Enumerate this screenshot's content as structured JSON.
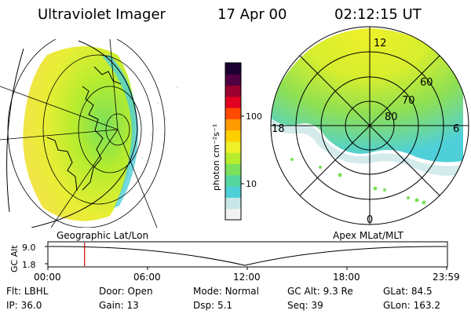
{
  "header": {
    "instrument": "Ultraviolet Imager",
    "date": "17 Apr 00",
    "time": "02:12:15 UT"
  },
  "colorbar": {
    "unit_label": "photon cm⁻²s⁻¹",
    "ticks": [
      "100",
      "10"
    ],
    "colors": [
      "#f2f2f2",
      "#c8e6e6",
      "#4fd0d8",
      "#55d6a0",
      "#7be05a",
      "#b6ec2e",
      "#eef02a",
      "#ffd000",
      "#ff9a00",
      "#ff4a00",
      "#e00020",
      "#9a0030",
      "#500040",
      "#1a0030"
    ]
  },
  "left_map": {
    "label": "Geographic Lat/Lon"
  },
  "right_map": {
    "label": "Apex MLat/MLT",
    "lat_labels": [
      "60",
      "70",
      "80"
    ],
    "mlt_labels": {
      "top": "12",
      "left": "18",
      "right": "6",
      "bottom": "0"
    }
  },
  "timeline": {
    "ylabel": "GC Alt",
    "y_ticks": [
      "9.0",
      "1.8"
    ],
    "x_ticks": [
      "00:00",
      "06:00",
      "12:00",
      "18:00",
      "23:59"
    ],
    "marker_time_fraction": 0.092,
    "marker_color": "#cc0000"
  },
  "status": {
    "row1": [
      {
        "key": "Flt:",
        "value": "LBHL"
      },
      {
        "key": "Door:",
        "value": "Open"
      },
      {
        "key": "Mode:",
        "value": "Normal"
      },
      {
        "key": "GC Alt:",
        "value": "9.3 Re"
      },
      {
        "key": "GLat:",
        "value": "84.5"
      }
    ],
    "row2": [
      {
        "key": "IP:",
        "value": "36.0"
      },
      {
        "key": "Gain:",
        "value": "13"
      },
      {
        "key": "Dsp:",
        "value": "5.1"
      },
      {
        "key": "Seq:",
        "value": "39"
      },
      {
        "key": "GLon:",
        "value": "163.2"
      }
    ]
  }
}
